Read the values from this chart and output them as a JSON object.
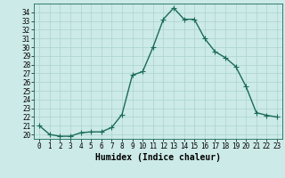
{
  "x": [
    0,
    1,
    2,
    3,
    4,
    5,
    6,
    7,
    8,
    9,
    10,
    11,
    12,
    13,
    14,
    15,
    16,
    17,
    18,
    19,
    20,
    21,
    22,
    23
  ],
  "y": [
    21.0,
    20.0,
    19.8,
    19.8,
    20.2,
    20.3,
    20.3,
    20.8,
    22.3,
    26.8,
    27.2,
    30.0,
    33.2,
    34.5,
    33.2,
    33.2,
    31.0,
    29.5,
    28.8,
    27.8,
    25.5,
    22.5,
    22.2,
    22.0
  ],
  "line_color": "#1a6b5a",
  "marker": "+",
  "marker_size": 4,
  "linewidth": 1.0,
  "bg_color": "#cceae7",
  "grid_color": "#aad4d0",
  "xlabel": "Humidex (Indice chaleur)",
  "ylim": [
    19.5,
    35.0
  ],
  "xlim": [
    -0.5,
    23.5
  ],
  "yticks": [
    20,
    21,
    22,
    23,
    24,
    25,
    26,
    27,
    28,
    29,
    30,
    31,
    32,
    33,
    34
  ],
  "xticks": [
    0,
    1,
    2,
    3,
    4,
    5,
    6,
    7,
    8,
    9,
    10,
    11,
    12,
    13,
    14,
    15,
    16,
    17,
    18,
    19,
    20,
    21,
    22,
    23
  ],
  "tick_fontsize": 5.5,
  "xlabel_fontsize": 7.0
}
